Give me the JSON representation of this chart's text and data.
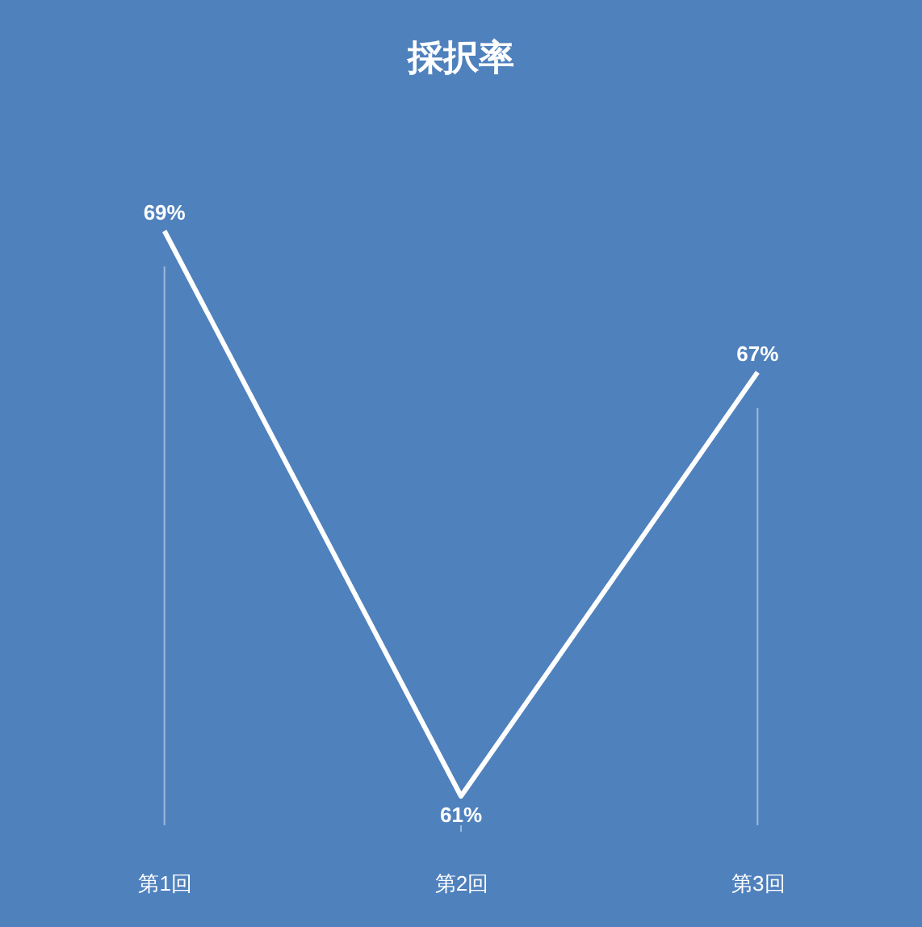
{
  "chart_data": {
    "type": "line",
    "title": "採択率",
    "categories": [
      "第1回",
      "第2回",
      "第3回"
    ],
    "series": [
      {
        "color": "#ffffff",
        "values": [
          69,
          61,
          67
        ],
        "value_labels": [
          "69%",
          "61%",
          "67%"
        ]
      }
    ],
    "grid": "x",
    "marker": "none",
    "line_style": "solid",
    "tick_labels": "x"
  }
}
